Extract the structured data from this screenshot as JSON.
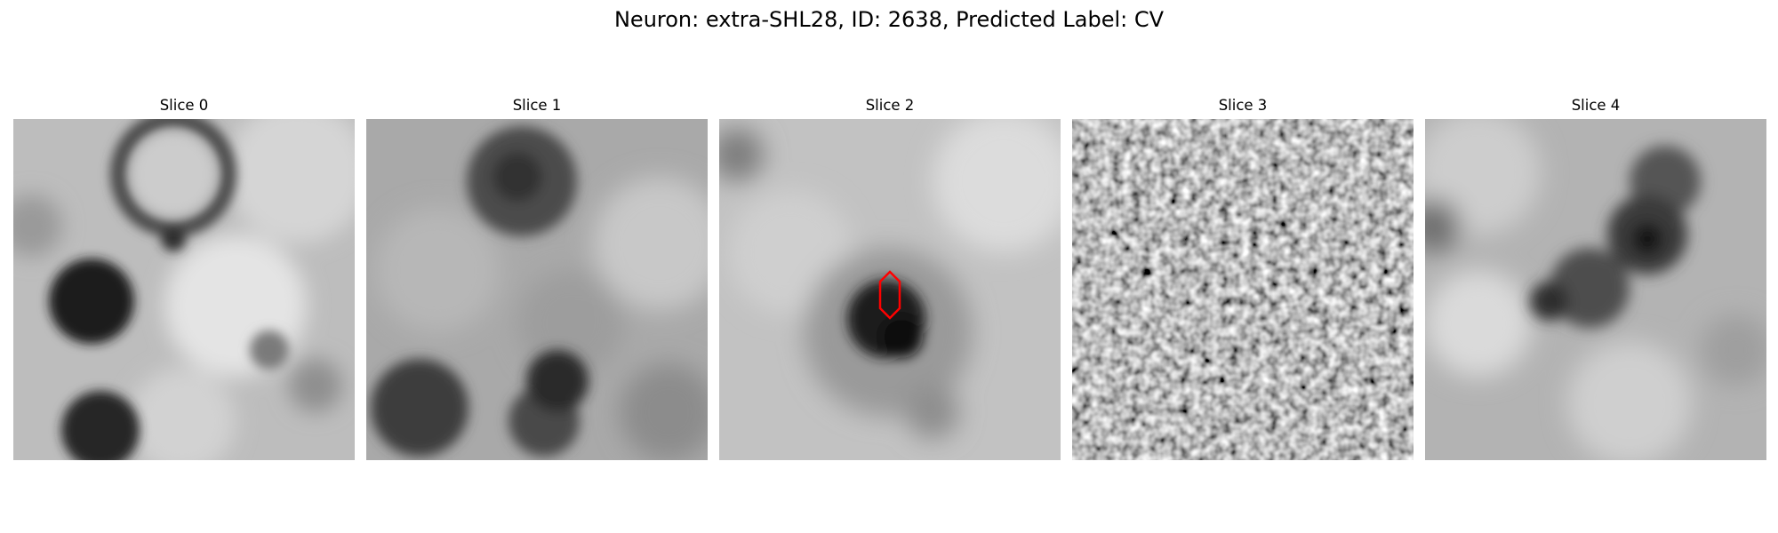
{
  "figure": {
    "title": "Neuron: extra-SHL28, ID: 2638, Predicted Label: CV"
  },
  "panels": [
    {
      "title": "Slice 0",
      "image": "grayscale EM patch with a dark ring-shaped vesicle at top center, a dark blob at left middle, and a dark blob at bottom left"
    },
    {
      "title": "Slice 1",
      "image": "grayscale EM patch with a dark diffuse region at top center and dark blobs along the bottom"
    },
    {
      "title": "Slice 2",
      "image": "grayscale EM patch, mostly light, with a dark blob at center and a red outline marker"
    },
    {
      "title": "Slice 3",
      "image": "grayscale EM patch with high-frequency noise texture"
    },
    {
      "title": "Slice 4",
      "image": "grayscale EM patch with a dark diagonal band from upper right to center"
    }
  ],
  "annotation": {
    "marker_shape": "elongated hexagon outline",
    "marker_color": "#ff0000",
    "marker_panel": "Slice 2"
  }
}
